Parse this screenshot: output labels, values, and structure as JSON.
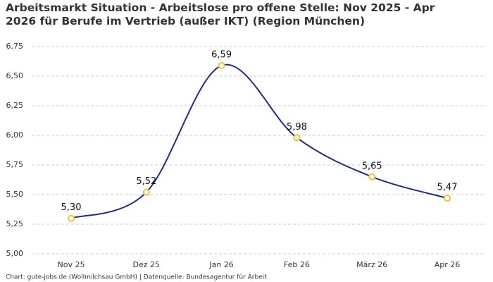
{
  "chart_data": {
    "type": "line",
    "title": "Arbeitsmarkt Situation - Arbeitslose pro offene Stelle: Nov 2025 - Apr 2026 für Berufe im Vertrieb (außer IKT) (Region München)",
    "source": "Chart: gute-jobs.de (Wollmilchsau GmbH) | Datenquelle: Bundesagentur für Arbeit",
    "categories": [
      "Nov 25",
      "Dez 25",
      "Jan 26",
      "Feb 26",
      "März 26",
      "Apr 26"
    ],
    "values": [
      5.3,
      5.52,
      6.59,
      5.98,
      5.65,
      5.47
    ],
    "value_labels": [
      "5,30",
      "5,52",
      "6,59",
      "5,98",
      "5,65",
      "5,47"
    ],
    "color": "#1f2d86",
    "marker_color": "#f2c230",
    "ylim": [
      5.0,
      6.75
    ],
    "yticks": [
      {
        "value": 5.0,
        "label": "5,00"
      },
      {
        "value": 5.25,
        "label": "5,25"
      },
      {
        "value": 5.5,
        "label": "5,50"
      },
      {
        "value": 5.75,
        "label": "5,75"
      },
      {
        "value": 6.0,
        "label": "6,00"
      },
      {
        "value": 6.25,
        "label": "6,25"
      },
      {
        "value": 6.5,
        "label": "6,50"
      },
      {
        "value": 6.75,
        "label": "6,75"
      }
    ],
    "grid": true
  }
}
